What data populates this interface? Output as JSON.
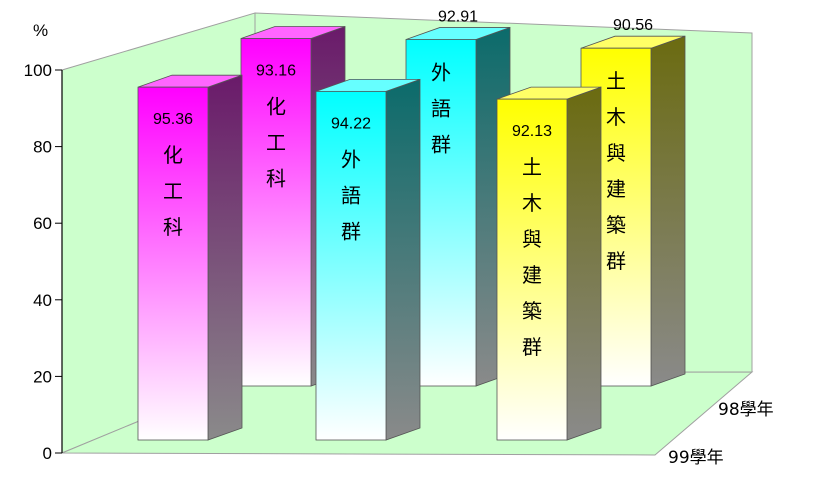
{
  "chart_data": {
    "type": "bar",
    "unit_label": "%",
    "categories": [
      "化工科",
      "外語群",
      "土木與建築群"
    ],
    "series": [
      {
        "name": "99學年",
        "values": [
          95.36,
          94.22,
          92.13
        ]
      },
      {
        "name": "98學年",
        "values": [
          93.16,
          92.91,
          90.56
        ]
      }
    ],
    "ylim": [
      0,
      100
    ],
    "yticks": [
      "0",
      "20",
      "40",
      "60",
      "80",
      "100"
    ],
    "colors": {
      "化工科": "#ff00ff",
      "外語群": "#00ffff",
      "土木與建築群": "#ffff00"
    },
    "wall_color": "#ccffcc",
    "grid": false,
    "three_d": true
  }
}
